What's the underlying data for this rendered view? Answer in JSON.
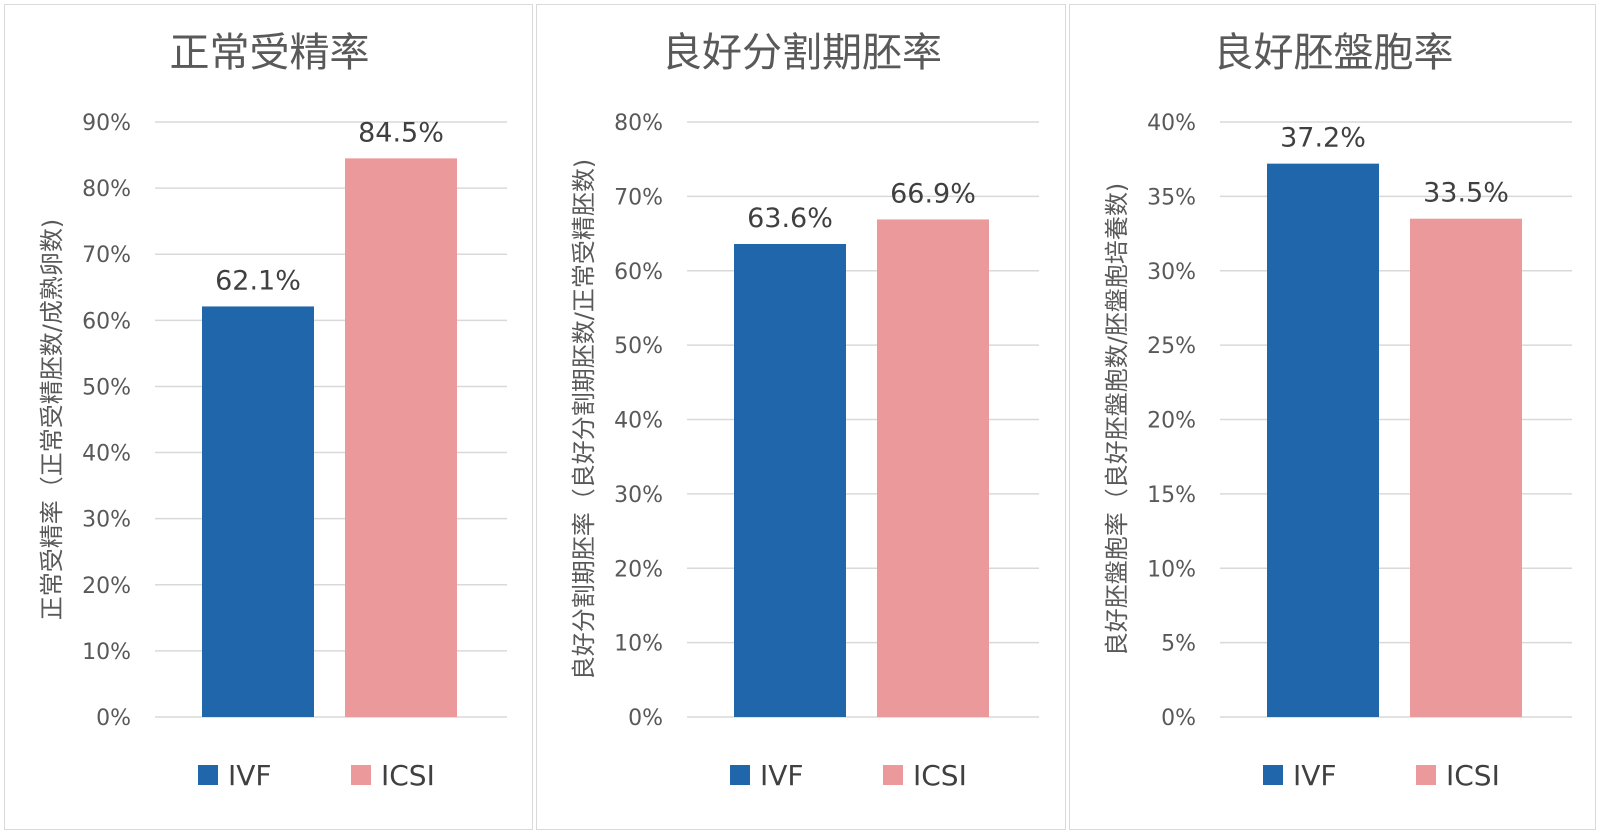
{
  "chart_data": [
    {
      "type": "bar",
      "title": "正常受精率",
      "ylabel": "正常受精率（正常受精胚数/成熟卵数)",
      "xlabel": "",
      "ylim": [
        0,
        90
      ],
      "ytick_step": 10,
      "ytick_labels": [
        "0%",
        "10%",
        "20%",
        "30%",
        "40%",
        "50%",
        "60%",
        "70%",
        "80%",
        "90%"
      ],
      "series": [
        {
          "name": "IVF",
          "values": [
            62.1
          ],
          "labels": [
            "62.1%"
          ],
          "color": "#1f66aa"
        },
        {
          "name": "ICSI",
          "values": [
            84.5
          ],
          "labels": [
            "84.5%"
          ],
          "color": "#eb999b"
        }
      ],
      "grid": true,
      "legend_position": "bottom"
    },
    {
      "type": "bar",
      "title": "良好分割期胚率",
      "ylabel": "良好分割期胚率（良好分割期胚数/正常受精胚数)",
      "xlabel": "",
      "ylim": [
        0,
        80
      ],
      "ytick_step": 10,
      "ytick_labels": [
        "0%",
        "10%",
        "20%",
        "30%",
        "40%",
        "50%",
        "60%",
        "70%",
        "80%"
      ],
      "series": [
        {
          "name": "IVF",
          "values": [
            63.6
          ],
          "labels": [
            "63.6%"
          ],
          "color": "#1f66aa"
        },
        {
          "name": "ICSI",
          "values": [
            66.9
          ],
          "labels": [
            "66.9%"
          ],
          "color": "#eb999b"
        }
      ],
      "grid": true,
      "legend_position": "bottom"
    },
    {
      "type": "bar",
      "title": "良好胚盤胞率",
      "ylabel": "良好胚盤胞率（良好胚盤胞数/胚盤胞培養数)",
      "xlabel": "",
      "ylim": [
        0,
        40
      ],
      "ytick_step": 5,
      "ytick_labels": [
        "0%",
        "5%",
        "10%",
        "15%",
        "20%",
        "25%",
        "30%",
        "35%",
        "40%"
      ],
      "series": [
        {
          "name": "IVF",
          "values": [
            37.2
          ],
          "labels": [
            "37.2%"
          ],
          "color": "#1f66aa"
        },
        {
          "name": "ICSI",
          "values": [
            33.5
          ],
          "labels": [
            "33.5%"
          ],
          "color": "#eb999b"
        }
      ],
      "grid": true,
      "legend_position": "bottom"
    }
  ]
}
